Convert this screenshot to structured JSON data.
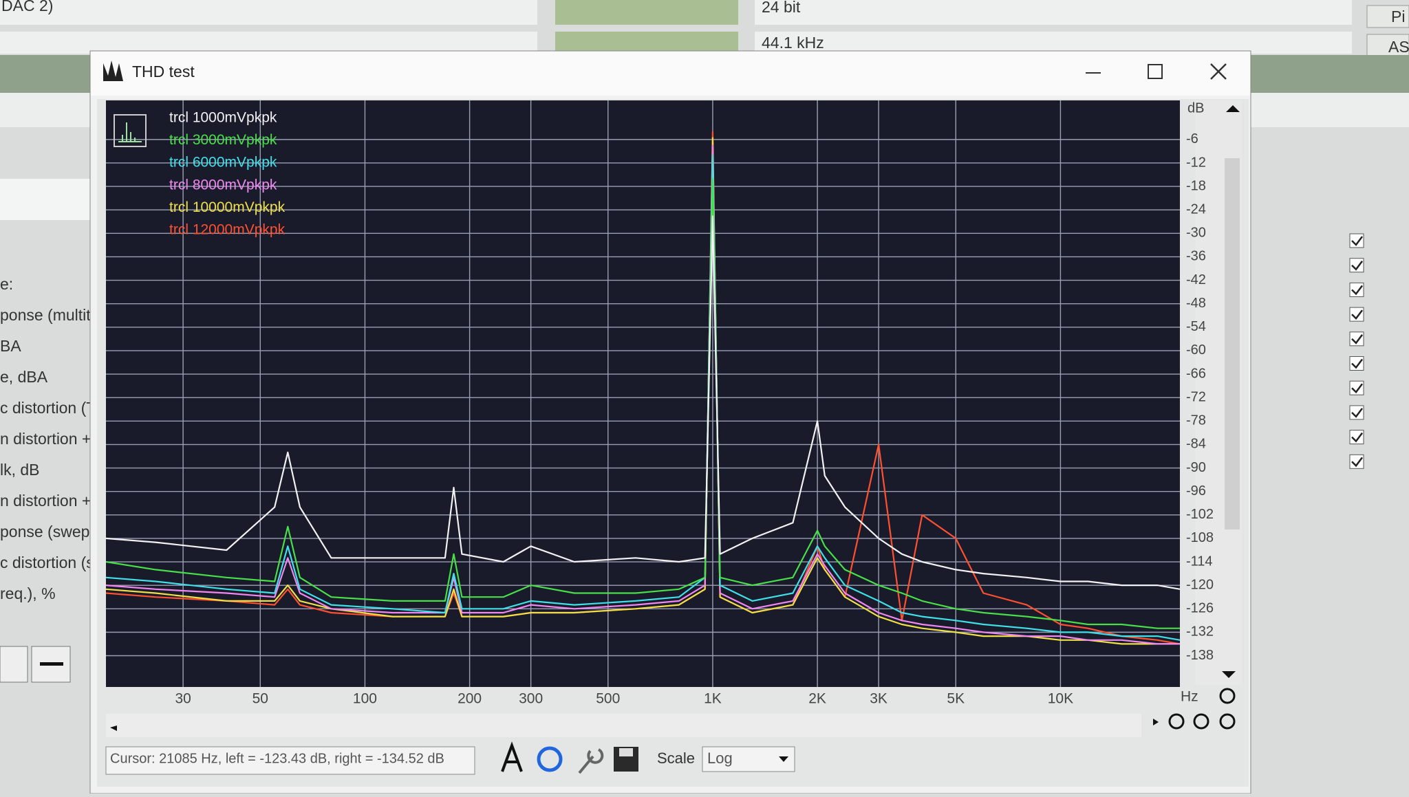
{
  "background": {
    "output_select": "DAC 2)",
    "bit_depth": "24 bit",
    "sample_rate": "44.1 kHz",
    "buttons": [
      "Pi",
      "AS"
    ],
    "tests": [
      "e:",
      "ponse (multitor",
      "BA",
      "e, dBA",
      "c distortion (TH",
      "n distortion + n",
      "lk, dB",
      "n distortion + n",
      "ponse (swept s",
      "c distortion (swe",
      "req.), %"
    ]
  },
  "window": {
    "title": "THD test"
  },
  "chart_data": {
    "type": "line",
    "xscale": "log",
    "grid": true,
    "legend": "upper left",
    "x_label": "Hz",
    "y_label": "dB",
    "xlim": [
      18,
      22050
    ],
    "ylim": [
      -146,
      4
    ],
    "xticks": [
      30,
      50,
      100,
      200,
      300,
      500,
      {
        "value": 1000,
        "label": "1K"
      },
      {
        "value": 2000,
        "label": "2K"
      },
      {
        "value": 3000,
        "label": "3K"
      },
      {
        "value": 5000,
        "label": "5K"
      },
      {
        "value": 10000,
        "label": "10K"
      }
    ],
    "yticks": [
      -6,
      -12,
      -18,
      -24,
      -30,
      -36,
      -42,
      -48,
      -54,
      -60,
      -66,
      -72,
      -78,
      -84,
      -90,
      -96,
      -102,
      -108,
      -114,
      -120,
      -126,
      -132,
      -138
    ],
    "x": [
      18,
      25,
      40,
      55,
      60,
      65,
      80,
      120,
      170,
      180,
      190,
      250,
      300,
      400,
      600,
      800,
      950,
      1000,
      1050,
      1300,
      1700,
      2000,
      2100,
      2400,
      3000,
      3500,
      4000,
      5000,
      6000,
      8000,
      10000,
      12000,
      15000,
      19000,
      22050
    ],
    "series": [
      {
        "name": "trcl 1000mVpkpk",
        "color": "#f2f2f2",
        "values": [
          -108,
          -109,
          -111,
          -100,
          -86,
          -100,
          -113,
          -113,
          -113,
          -95,
          -112,
          -114,
          -110,
          -114,
          -113,
          -114,
          -113,
          -25.6,
          -112,
          -108,
          -104,
          -78,
          -92,
          -100,
          -108,
          -112,
          -114,
          -116,
          -117,
          -118,
          -119,
          -119,
          -120,
          -120,
          -121
        ]
      },
      {
        "name": "trcl 3000mVpkpk",
        "color": "#48e048",
        "values": [
          -114,
          -116,
          -118,
          -119,
          -105,
          -118,
          -123,
          -124,
          -124,
          -112,
          -123,
          -123,
          -120,
          -122,
          -122,
          -121,
          -118,
          -16,
          -118,
          -120,
          -118,
          -106,
          -110,
          -116,
          -120,
          -122,
          -124,
          -126,
          -127,
          -128,
          -129,
          -130,
          -130,
          -131,
          -131
        ]
      },
      {
        "name": "trcl 6000mVpkpk",
        "color": "#40e0e8",
        "values": [
          -118,
          -119,
          -121,
          -122,
          -110,
          -121,
          -125,
          -126,
          -127,
          -117,
          -126,
          -126,
          -124,
          -125,
          -124,
          -123,
          -118,
          -10,
          -120,
          -124,
          -122,
          -110,
          -113,
          -120,
          -124,
          -127,
          -128,
          -129,
          -130,
          -131,
          -132,
          -132,
          -133,
          -133,
          -134
        ]
      },
      {
        "name": "trcl 8000mVpkpk",
        "color": "#f088f0",
        "values": [
          -120,
          -121,
          -122,
          -123,
          -113,
          -122,
          -126,
          -127,
          -127,
          -118,
          -127,
          -127,
          -125,
          -126,
          -125,
          -124,
          -120,
          -7.5,
          -122,
          -126,
          -124,
          -112,
          -115,
          -122,
          -127,
          -129,
          -130,
          -131,
          -132,
          -133,
          -133,
          -134,
          -134,
          -135,
          -135
        ]
      },
      {
        "name": "trcl 10000mVpkpk",
        "color": "#f0e048",
        "values": [
          -121,
          -122,
          -124,
          -124,
          -120,
          -124,
          -126,
          -128,
          -128,
          -121,
          -128,
          -128,
          -127,
          -127,
          -126,
          -125,
          -121,
          -5.6,
          -123,
          -127,
          -125,
          -113,
          -116,
          -123,
          -128,
          -130,
          -131,
          -132,
          -133,
          -133,
          -134,
          -134,
          -135,
          -135,
          -135
        ]
      },
      {
        "name": "trcl 12000mVpkpk",
        "color": "#ff5030",
        "values": [
          -122,
          -123,
          -124,
          -125,
          -121,
          -125,
          -127,
          -128,
          -128,
          -122,
          -128,
          -128,
          -127,
          -127,
          -126,
          -125,
          -121,
          -4,
          -123,
          -127,
          -125,
          -110,
          -116,
          -123,
          -84,
          -129,
          -102,
          -108,
          -122,
          -125,
          -130,
          -131,
          -133,
          -134,
          -135
        ]
      }
    ]
  },
  "status": {
    "cursor_readout": "Cursor:  21085 Hz,  left = -123.43 dB,  right = -134.52 dB",
    "scale_label": "Scale",
    "scale_value": "Log"
  }
}
